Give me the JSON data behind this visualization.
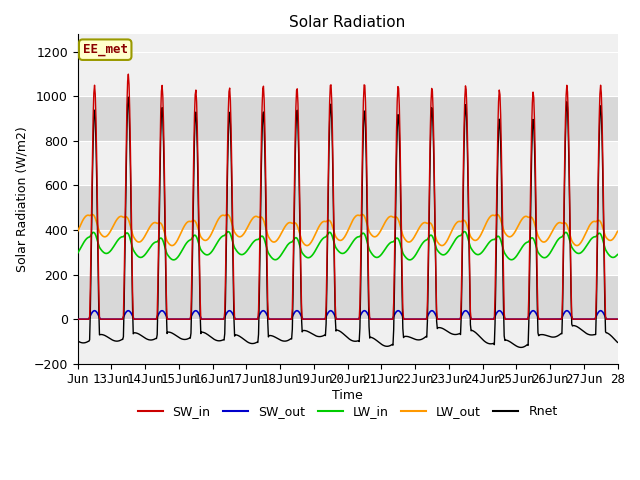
{
  "title": "Solar Radiation",
  "ylabel": "Solar Radiation (W/m2)",
  "xlabel": "Time",
  "ylim": [
    -200,
    1280
  ],
  "xlim": [
    12,
    28
  ],
  "yticks": [
    -200,
    0,
    200,
    400,
    600,
    800,
    1000,
    1200
  ],
  "xtick_labels": [
    "Jun",
    "13Jun",
    "14Jun",
    "15Jun",
    "16Jun",
    "17Jun",
    "18Jun",
    "19Jun",
    "20Jun",
    "21Jun",
    "22Jun",
    "23Jun",
    "24Jun",
    "25Jun",
    "26Jun",
    "27Jun",
    "28"
  ],
  "xtick_positions": [
    12,
    13,
    14,
    15,
    16,
    17,
    18,
    19,
    20,
    21,
    22,
    23,
    24,
    25,
    26,
    27,
    28
  ],
  "annotation_text": "EE_met",
  "annotation_facecolor": "#ffffcc",
  "annotation_edgecolor": "#999900",
  "annotation_textcolor": "#8b0000",
  "colors": {
    "SW_in": "#cc0000",
    "SW_out": "#0000cc",
    "LW_in": "#00cc00",
    "LW_out": "#ff9900",
    "Rnet": "#000000"
  },
  "legend_labels": [
    "SW_in",
    "SW_out",
    "LW_in",
    "LW_out",
    "Rnet"
  ],
  "background_color": "#ffffff",
  "plot_bg_light": "#f0f0f0",
  "plot_bg_dark": "#d8d8d8",
  "grid_color": "#ffffff",
  "num_days": 16,
  "hours_per_sample": 1,
  "SW_in_peak": 1050,
  "LW_in_base": 320,
  "LW_in_amp": 40,
  "LW_out_base": 400,
  "LW_out_amp": 50,
  "SW_out_day_peak": 40,
  "Rnet_night": -80
}
